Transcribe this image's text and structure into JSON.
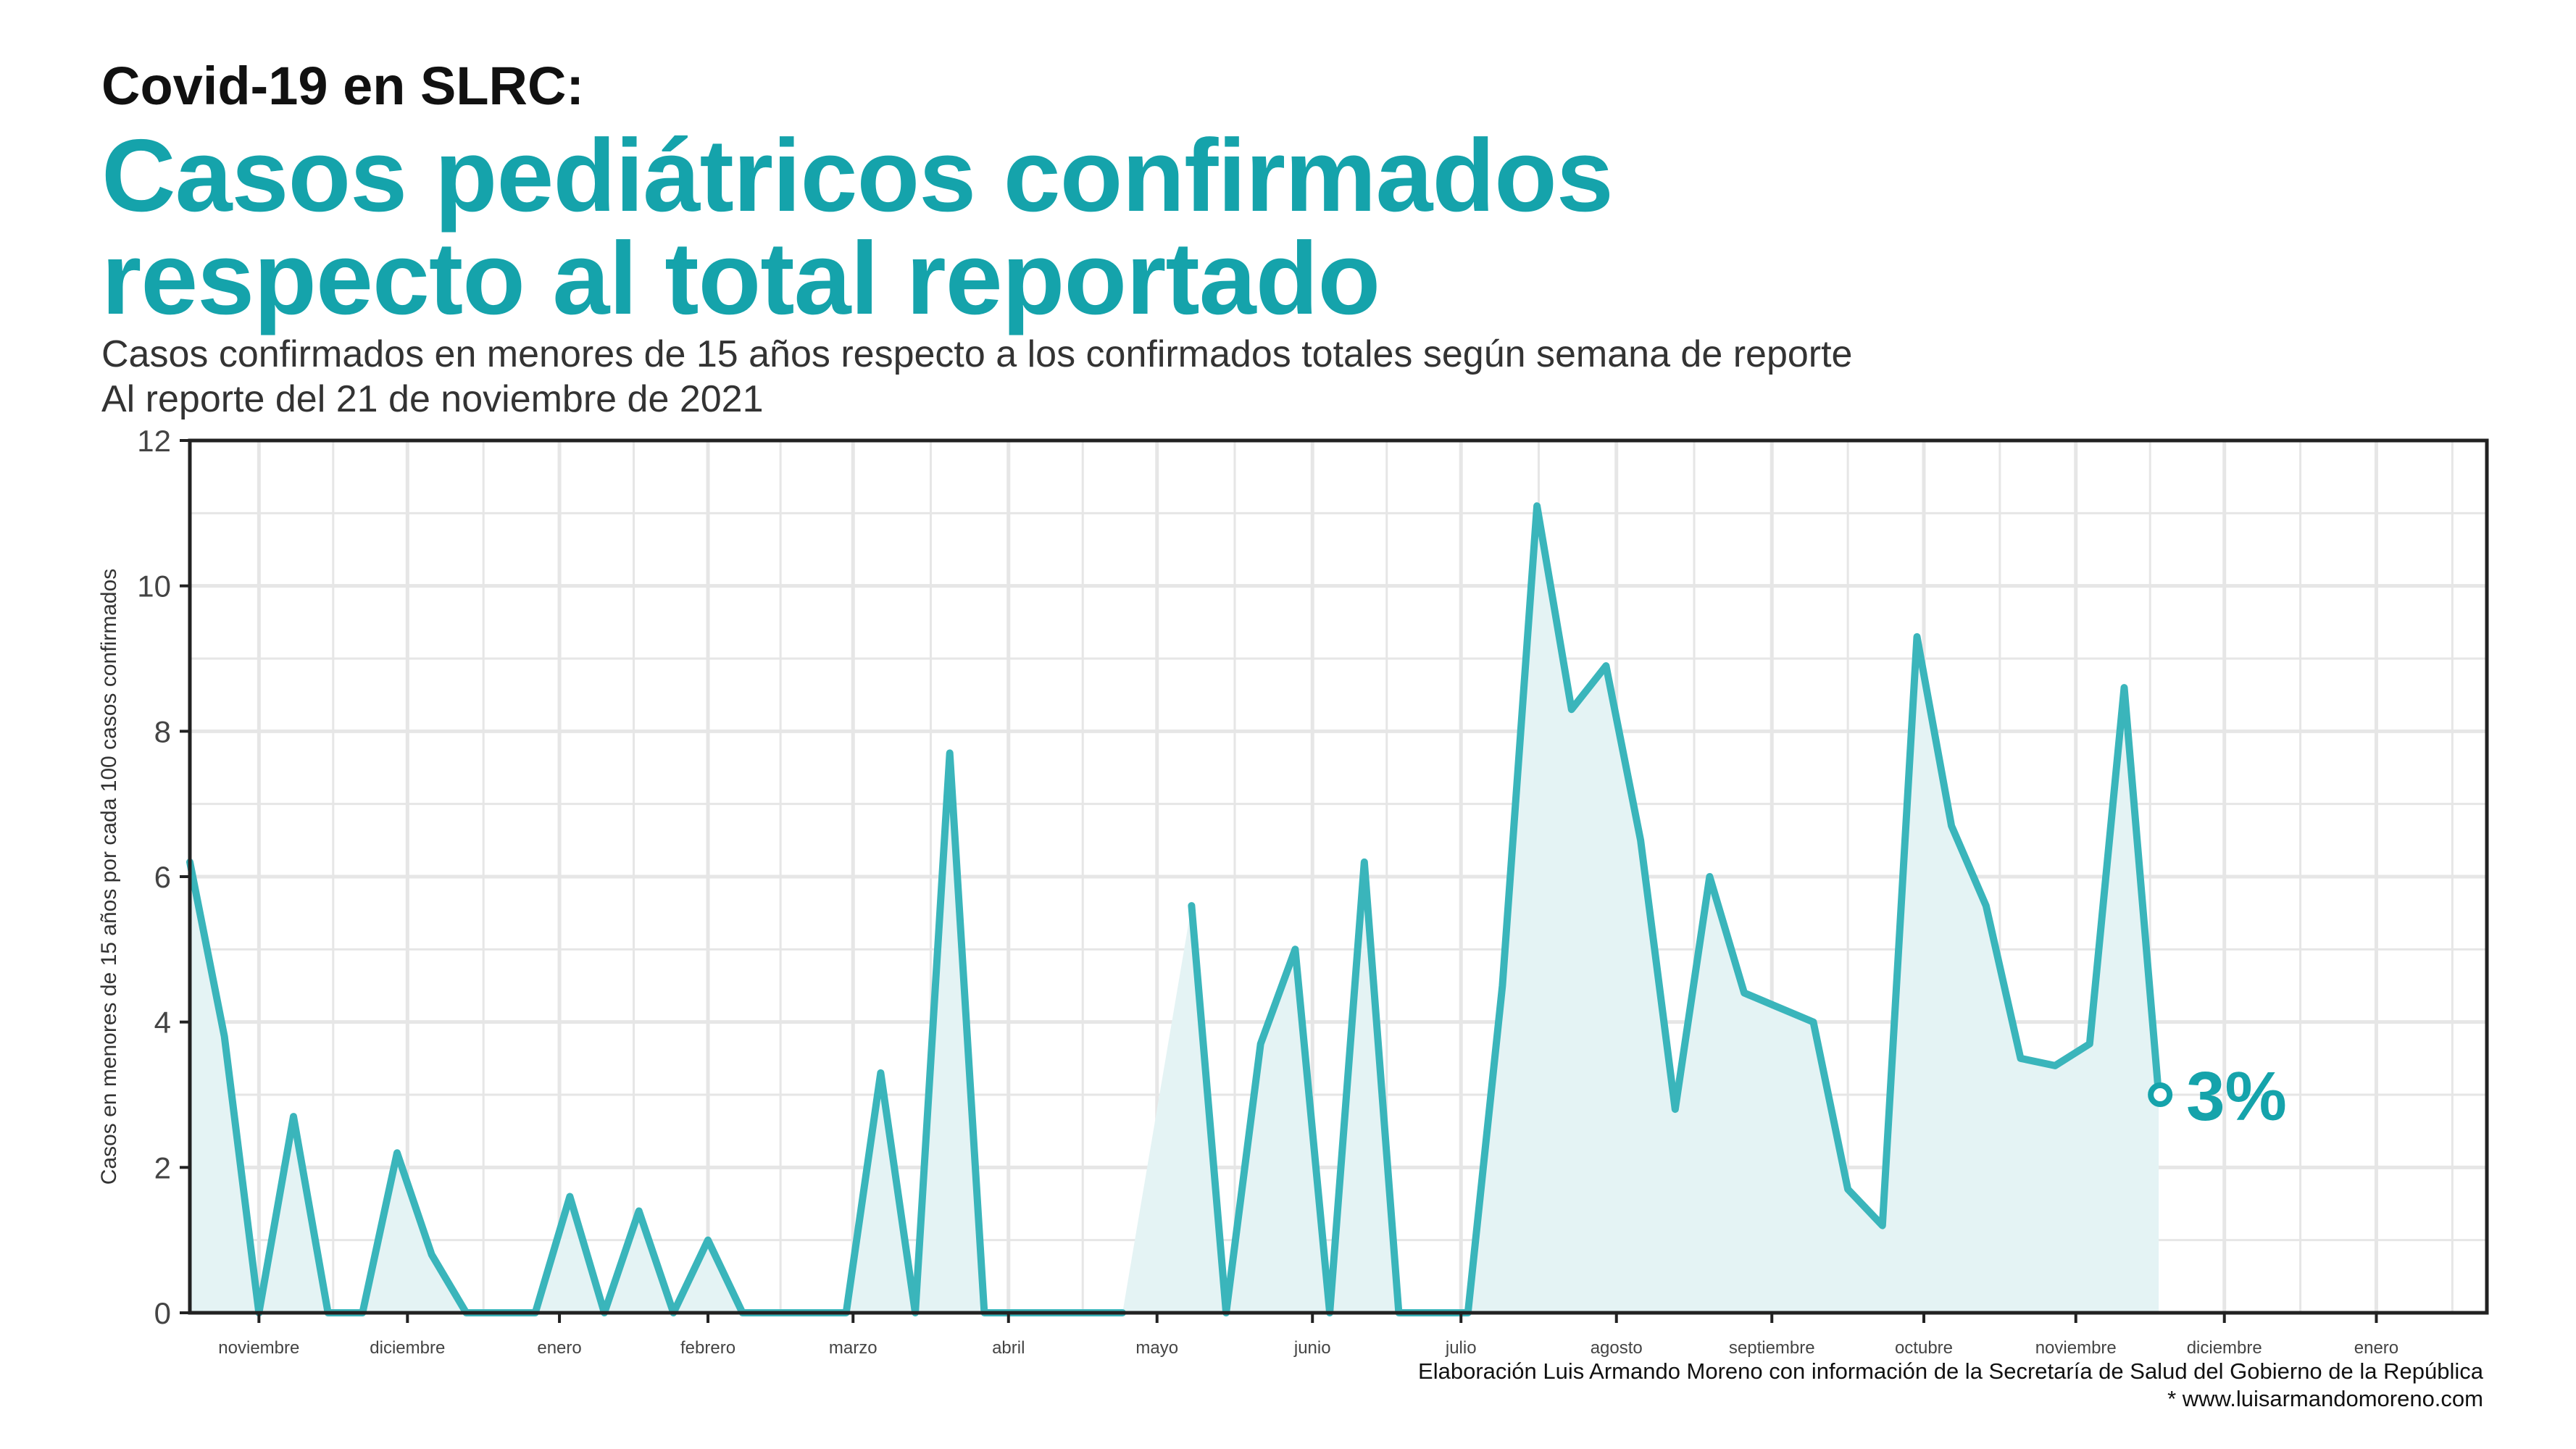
{
  "header": {
    "kicker": "Covid-19 en SLRC:",
    "title_line1": "Casos pediátricos confirmados",
    "title_line2": "respecto al total reportado",
    "subtitle_line1": "Casos confirmados en menores de 15 años respecto a los confirmados totales según semana de reporte",
    "subtitle_line2": "Al reporte del 21 de noviembre de 2021"
  },
  "footer": {
    "source": "Elaboración Luis Armando Moreno con información de la Secretaría de Salud del Gobierno de la República",
    "website": "* www.luisarmandomoreno.com"
  },
  "colors": {
    "accent": "#15a3ab",
    "line": "#3ab5bb",
    "area": "#e4f3f4",
    "grid": "#e6e6e6",
    "axis": "#222222"
  },
  "chart_data": {
    "type": "area",
    "ylabel": "Casos en menores de 15 años por cada 100 casos confirmados",
    "xlabel": "",
    "ylim": [
      0,
      12
    ],
    "y_ticks": [
      0,
      2,
      4,
      6,
      8,
      10,
      12
    ],
    "grid": true,
    "x_range_weeks": [
      0,
      66.5
    ],
    "month_labels": [
      {
        "label": "noviembre",
        "week": 2.0
      },
      {
        "label": "diciembre",
        "week": 6.3
      },
      {
        "label": "enero",
        "week": 10.7
      },
      {
        "label": "febrero",
        "week": 15.0
      },
      {
        "label": "marzo",
        "week": 19.2
      },
      {
        "label": "abril",
        "week": 23.7
      },
      {
        "label": "mayo",
        "week": 28.0
      },
      {
        "label": "junio",
        "week": 32.5
      },
      {
        "label": "julio",
        "week": 36.8
      },
      {
        "label": "agosto",
        "week": 41.3
      },
      {
        "label": "septiembre",
        "week": 45.8
      },
      {
        "label": "octubre",
        "week": 50.2
      },
      {
        "label": "noviembre",
        "week": 54.6
      },
      {
        "label": "diciembre",
        "week": 58.9
      },
      {
        "label": "enero",
        "week": 63.3
      }
    ],
    "series": [
      {
        "values": [
          6.2,
          3.8,
          0,
          2.7,
          0,
          0,
          2.2,
          0.8,
          0,
          0,
          0,
          1.6,
          0,
          1.4,
          0,
          1.0,
          0,
          0,
          0,
          0,
          3.3,
          0,
          7.7,
          0,
          0,
          0,
          0,
          0,
          null,
          5.6,
          0,
          3.7,
          5.0,
          0,
          6.2,
          0,
          0,
          0,
          4.5,
          11.1,
          8.3,
          8.9,
          6.5,
          2.8,
          6.0,
          4.4,
          4.2,
          4.0,
          1.7,
          1.2,
          9.3,
          6.7,
          5.6,
          3.5,
          3.4,
          3.7,
          8.6,
          3.0
        ]
      }
    ],
    "end_label": "3%"
  }
}
